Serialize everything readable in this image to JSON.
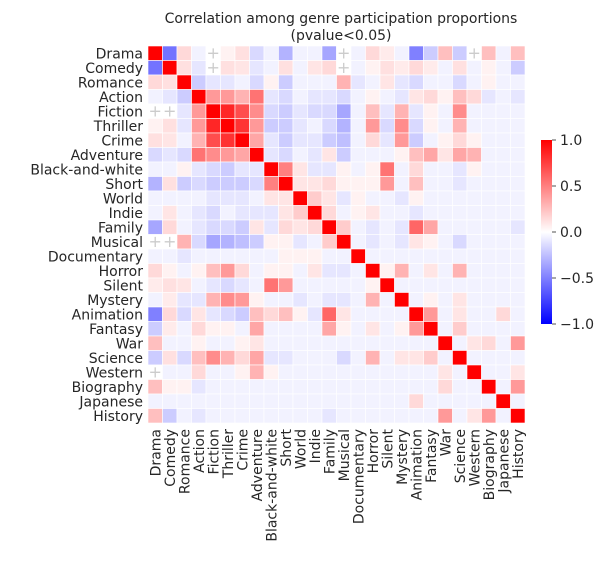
{
  "chart_data": {
    "type": "heatmap",
    "title": "Correlation among genre participation proportions",
    "subtitle": "(pvalue<0.05)",
    "xlabel": "",
    "ylabel": "",
    "categories": [
      "Drama",
      "Comedy",
      "Romance",
      "Action",
      "Fiction",
      "Thriller",
      "Crime",
      "Adventure",
      "Black-and-white",
      "Short",
      "World",
      "Indie",
      "Family",
      "Musical",
      "Documentary",
      "Horror",
      "Silent",
      "Mystery",
      "Animation",
      "Fantasy",
      "War",
      "Science",
      "Western",
      "Biography",
      "Japanese",
      "History"
    ],
    "matrix": [
      [
        1.0,
        -0.55,
        0.15,
        -0.05,
        null,
        0.05,
        0.12,
        -0.15,
        -0.05,
        -0.3,
        -0.05,
        -0.05,
        -0.35,
        null,
        -0.05,
        0.15,
        0.08,
        -0.05,
        -0.5,
        -0.2,
        0.25,
        -0.2,
        null,
        0.25,
        -0.05,
        0.25
      ],
      [
        -0.55,
        1.0,
        0.12,
        -0.1,
        null,
        0.12,
        0.1,
        -0.1,
        -0.05,
        0.12,
        -0.05,
        0.1,
        0.15,
        null,
        -0.05,
        0.05,
        0.12,
        0.08,
        0.15,
        0.08,
        -0.05,
        0.12,
        -0.05,
        0.05,
        -0.05,
        -0.2
      ],
      [
        0.15,
        0.12,
        1.0,
        -0.2,
        -0.1,
        -0.1,
        -0.05,
        -0.15,
        0.05,
        -0.2,
        -0.05,
        -0.05,
        -0.05,
        0.3,
        -0.1,
        -0.05,
        0.1,
        -0.1,
        -0.15,
        -0.05,
        -0.05,
        -0.15,
        -0.05,
        0.05,
        -0.05,
        -0.05
      ],
      [
        -0.05,
        -0.1,
        -0.2,
        1.0,
        0.4,
        0.4,
        0.3,
        0.55,
        -0.1,
        -0.15,
        -0.05,
        -0.1,
        -0.1,
        -0.15,
        -0.05,
        0.05,
        -0.05,
        -0.1,
        0.1,
        0.15,
        0.05,
        0.25,
        0.15,
        -0.1,
        -0.05,
        -0.1
      ],
      [
        null,
        null,
        -0.1,
        0.4,
        1.0,
        0.85,
        0.7,
        0.45,
        -0.15,
        -0.2,
        -0.1,
        -0.15,
        -0.15,
        -0.35,
        -0.05,
        0.25,
        -0.1,
        0.3,
        -0.1,
        0.05,
        -0.05,
        0.45,
        -0.05,
        -0.05,
        -0.05,
        -0.05
      ],
      [
        0.05,
        0.12,
        -0.1,
        0.4,
        0.85,
        1.0,
        0.8,
        0.4,
        -0.2,
        -0.2,
        -0.1,
        -0.05,
        -0.15,
        -0.3,
        -0.05,
        0.4,
        -0.15,
        0.45,
        -0.15,
        0.05,
        -0.05,
        0.3,
        -0.05,
        -0.05,
        -0.05,
        -0.05
      ],
      [
        0.12,
        0.1,
        -0.05,
        0.3,
        0.7,
        0.8,
        1.0,
        0.35,
        -0.1,
        -0.2,
        -0.1,
        -0.1,
        -0.2,
        -0.25,
        -0.05,
        0.15,
        -0.1,
        0.4,
        -0.2,
        -0.05,
        0.05,
        0.15,
        0.05,
        -0.05,
        -0.05,
        -0.05
      ],
      [
        -0.15,
        -0.1,
        -0.15,
        0.55,
        0.45,
        0.4,
        0.35,
        1.0,
        -0.1,
        -0.15,
        -0.05,
        -0.1,
        0.1,
        -0.2,
        -0.05,
        -0.05,
        -0.05,
        0.05,
        0.25,
        0.35,
        0.1,
        0.35,
        0.3,
        -0.05,
        -0.05,
        -0.05
      ],
      [
        -0.05,
        -0.05,
        0.05,
        -0.1,
        -0.15,
        -0.2,
        -0.1,
        -0.1,
        1.0,
        0.5,
        0.1,
        -0.1,
        -0.1,
        0.05,
        -0.05,
        0.05,
        0.55,
        -0.05,
        0.15,
        -0.05,
        -0.05,
        -0.1,
        0.05,
        -0.05,
        -0.05,
        -0.05
      ],
      [
        -0.3,
        0.12,
        -0.2,
        -0.15,
        -0.2,
        -0.2,
        -0.2,
        -0.15,
        0.5,
        1.0,
        0.1,
        0.1,
        0.15,
        0.05,
        0.05,
        0.05,
        0.4,
        -0.05,
        0.25,
        -0.05,
        -0.05,
        -0.1,
        -0.05,
        -0.05,
        -0.05,
        -0.05
      ],
      [
        -0.05,
        -0.05,
        -0.05,
        -0.05,
        -0.1,
        -0.1,
        -0.1,
        -0.05,
        0.1,
        0.1,
        1.0,
        0.2,
        0.1,
        -0.1,
        0.05,
        -0.05,
        -0.05,
        -0.1,
        0.05,
        -0.05,
        -0.05,
        -0.05,
        -0.05,
        -0.05,
        -0.05,
        -0.05
      ],
      [
        -0.05,
        0.1,
        -0.05,
        -0.1,
        -0.15,
        -0.05,
        -0.1,
        -0.1,
        -0.1,
        0.1,
        0.2,
        1.0,
        0.15,
        -0.05,
        0.05,
        0.1,
        -0.05,
        -0.05,
        -0.1,
        -0.05,
        -0.05,
        -0.05,
        -0.05,
        -0.05,
        -0.05,
        -0.05
      ],
      [
        -0.35,
        0.15,
        -0.05,
        -0.1,
        -0.15,
        -0.15,
        -0.2,
        0.1,
        -0.1,
        0.15,
        0.1,
        0.15,
        1.0,
        0.2,
        -0.05,
        -0.1,
        -0.05,
        -0.1,
        0.6,
        0.35,
        -0.05,
        -0.05,
        -0.05,
        -0.05,
        -0.05,
        -0.1
      ],
      [
        null,
        null,
        0.3,
        -0.15,
        -0.35,
        -0.3,
        -0.25,
        -0.2,
        0.05,
        0.05,
        -0.1,
        -0.05,
        0.2,
        1.0,
        -0.05,
        -0.1,
        -0.05,
        -0.1,
        0.1,
        0.05,
        -0.05,
        -0.15,
        -0.05,
        -0.05,
        -0.05,
        -0.05
      ],
      [
        -0.05,
        -0.05,
        -0.1,
        -0.05,
        -0.05,
        -0.05,
        -0.05,
        -0.05,
        -0.05,
        0.05,
        0.05,
        0.05,
        -0.05,
        -0.05,
        1.0,
        -0.05,
        -0.05,
        -0.05,
        -0.05,
        -0.05,
        -0.05,
        -0.05,
        -0.05,
        -0.05,
        -0.05,
        -0.05
      ],
      [
        0.15,
        0.05,
        -0.05,
        0.05,
        0.25,
        0.4,
        0.15,
        -0.05,
        0.05,
        0.05,
        -0.05,
        0.1,
        -0.1,
        -0.1,
        -0.05,
        1.0,
        0.05,
        0.3,
        -0.05,
        0.1,
        -0.05,
        0.3,
        -0.05,
        -0.05,
        -0.05,
        -0.05
      ],
      [
        0.08,
        0.12,
        0.1,
        -0.05,
        -0.1,
        -0.15,
        -0.1,
        -0.05,
        0.55,
        0.4,
        -0.05,
        -0.05,
        -0.05,
        -0.05,
        -0.05,
        0.05,
        1.0,
        -0.05,
        -0.05,
        -0.05,
        -0.05,
        -0.05,
        -0.05,
        -0.05,
        -0.05,
        -0.05
      ],
      [
        -0.05,
        0.08,
        -0.1,
        -0.1,
        0.3,
        0.45,
        0.4,
        0.05,
        -0.05,
        -0.05,
        -0.1,
        -0.05,
        -0.1,
        -0.1,
        -0.05,
        0.3,
        -0.05,
        1.0,
        -0.05,
        0.05,
        -0.05,
        0.1,
        -0.05,
        -0.05,
        -0.05,
        -0.05
      ],
      [
        -0.5,
        0.15,
        -0.15,
        0.1,
        -0.1,
        -0.15,
        -0.2,
        0.25,
        0.15,
        0.25,
        0.05,
        -0.1,
        0.6,
        0.1,
        -0.05,
        -0.05,
        -0.05,
        -0.05,
        1.0,
        0.4,
        -0.05,
        0.1,
        -0.05,
        -0.05,
        0.15,
        -0.05
      ],
      [
        -0.2,
        0.08,
        -0.05,
        0.15,
        0.05,
        0.05,
        -0.05,
        0.35,
        -0.05,
        -0.05,
        -0.05,
        -0.05,
        0.35,
        0.05,
        -0.05,
        0.1,
        -0.05,
        0.05,
        0.4,
        1.0,
        -0.05,
        0.2,
        -0.05,
        -0.05,
        -0.05,
        -0.05
      ],
      [
        0.25,
        -0.05,
        -0.05,
        0.05,
        -0.05,
        -0.05,
        0.05,
        0.1,
        -0.05,
        -0.05,
        -0.05,
        -0.05,
        -0.05,
        -0.05,
        -0.05,
        -0.05,
        -0.05,
        -0.05,
        -0.05,
        -0.05,
        1.0,
        -0.05,
        0.1,
        0.15,
        -0.05,
        0.4
      ],
      [
        -0.2,
        0.12,
        -0.15,
        0.25,
        0.45,
        0.3,
        0.15,
        0.35,
        -0.1,
        -0.1,
        -0.05,
        -0.05,
        -0.05,
        -0.15,
        -0.05,
        0.3,
        -0.05,
        0.1,
        0.1,
        0.2,
        -0.05,
        1.0,
        -0.05,
        -0.05,
        -0.05,
        -0.05
      ],
      [
        null,
        -0.05,
        -0.05,
        0.15,
        -0.05,
        -0.05,
        0.05,
        0.3,
        0.05,
        -0.05,
        -0.05,
        -0.05,
        -0.05,
        -0.05,
        -0.05,
        -0.05,
        -0.05,
        -0.05,
        -0.05,
        -0.05,
        0.1,
        -0.05,
        1.0,
        -0.05,
        -0.05,
        0.1
      ],
      [
        0.25,
        0.05,
        0.05,
        -0.1,
        -0.05,
        -0.05,
        -0.05,
        -0.05,
        -0.05,
        -0.05,
        -0.05,
        -0.05,
        -0.05,
        -0.05,
        -0.05,
        -0.05,
        -0.05,
        -0.05,
        -0.05,
        -0.05,
        0.15,
        -0.05,
        -0.05,
        1.0,
        -0.05,
        0.4
      ],
      [
        -0.05,
        -0.05,
        -0.05,
        -0.05,
        -0.05,
        -0.05,
        -0.05,
        -0.05,
        -0.05,
        -0.05,
        -0.05,
        -0.05,
        -0.05,
        -0.05,
        -0.05,
        -0.05,
        -0.05,
        -0.05,
        0.15,
        -0.05,
        -0.05,
        -0.05,
        -0.05,
        -0.05,
        1.0,
        -0.05
      ],
      [
        0.25,
        -0.2,
        -0.05,
        -0.1,
        -0.05,
        -0.05,
        -0.05,
        -0.05,
        -0.05,
        -0.05,
        -0.05,
        -0.05,
        -0.1,
        -0.05,
        -0.05,
        -0.05,
        -0.05,
        -0.05,
        -0.05,
        -0.05,
        0.4,
        -0.05,
        0.1,
        0.4,
        -0.05,
        1.0
      ]
    ],
    "vmin": -1.0,
    "vmax": 1.0,
    "colormap": "bwr",
    "colorbar_ticks": [
      "−1.0",
      "−0.5",
      "0.0",
      "0.5",
      "1.0"
    ],
    "nonsignificant_marker": "+",
    "grid": false,
    "legend": "colorbar-right"
  }
}
